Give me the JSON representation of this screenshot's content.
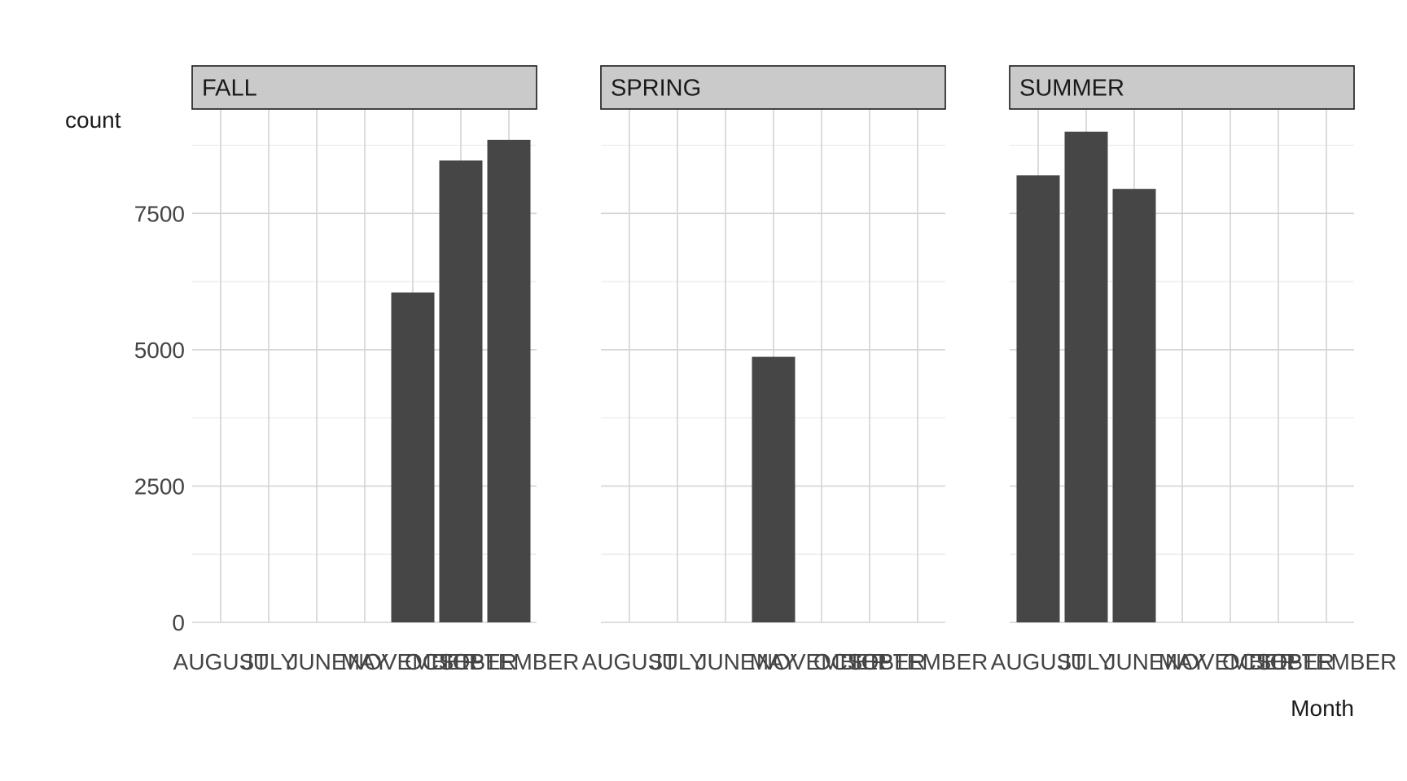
{
  "chart_data": {
    "type": "bar",
    "facet_by": "season",
    "categories": [
      "AUGUST",
      "JULY",
      "JUNE",
      "MAY",
      "NOVEMBER",
      "OCTOBER",
      "SEPTEMBER"
    ],
    "facets": [
      {
        "name": "FALL",
        "values": [
          0,
          0,
          0,
          0,
          6050,
          8470,
          8850
        ]
      },
      {
        "name": "SPRING",
        "values": [
          0,
          0,
          0,
          4870,
          0,
          0,
          0
        ]
      },
      {
        "name": "SUMMER",
        "values": [
          8200,
          9000,
          7950,
          0,
          0,
          0,
          0
        ]
      }
    ],
    "xlabel": "Month",
    "ylabel": "count",
    "ylim": [
      0,
      9400
    ],
    "yticks": [
      0,
      2500,
      5000,
      7500
    ],
    "grid": true,
    "legend": "none",
    "colors": {
      "bar": "#464646",
      "strip": "#cacaca",
      "grid_major": "#d4d4d4",
      "grid_minor": "#e9e9e9",
      "text": "#444444",
      "title_text": "#1a1a1a"
    }
  }
}
